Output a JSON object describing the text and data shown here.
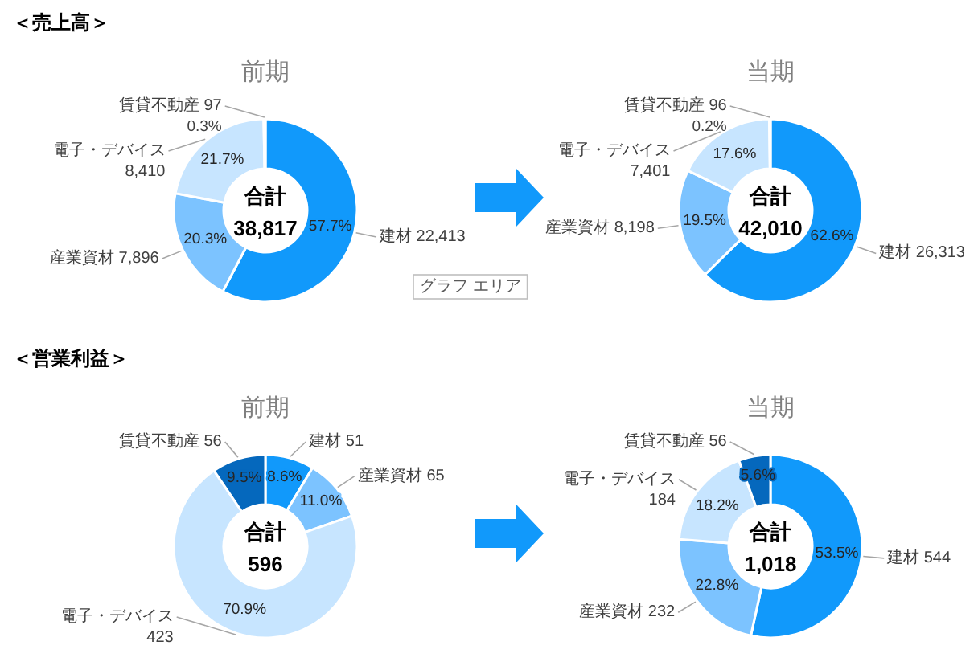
{
  "chart_data": [
    {
      "type": "donut",
      "title": "前期",
      "categories": [
        "建材 22,413",
        "産業資材 7,896",
        "電子・デバイス 8,410",
        "賃貸不動産 97"
      ],
      "values": [
        57.7,
        20.3,
        21.7,
        0.3
      ],
      "colors": [
        "#1199fb",
        "#7cc3ff",
        "#c7e5ff",
        "#0568bd"
      ],
      "value_labels": [
        "57.7%",
        "20.3%",
        "21.7%",
        "0.3%"
      ],
      "annotations": [
        "合計",
        "38,817",
        "＜売上高＞",
        "グラフ エリア"
      ]
    },
    {
      "type": "donut",
      "title": "当期",
      "categories": [
        "建材 26,313",
        "産業資材 8,198",
        "電子・デバイス 7,401",
        "賃貸不動産 96"
      ],
      "values": [
        62.6,
        19.5,
        17.6,
        0.2
      ],
      "colors": [
        "#1199fb",
        "#7cc3ff",
        "#c7e5ff",
        "#0568bd"
      ],
      "value_labels": [
        "62.6%",
        "19.5%",
        "17.6%",
        "0.2%"
      ],
      "annotations": [
        "合計",
        "42,010"
      ]
    },
    {
      "type": "donut",
      "title": "前期",
      "categories": [
        "建材 51",
        "産業資材 65",
        "電子・デバイス 423",
        "賃貸不動産 56"
      ],
      "values": [
        8.6,
        11.0,
        70.9,
        9.5
      ],
      "colors": [
        "#1199fb",
        "#7cc3ff",
        "#c7e5ff",
        "#0568bd"
      ],
      "value_labels": [
        "8.6%",
        "11.0%",
        "70.9%",
        "9.5%"
      ],
      "annotations": [
        "合計",
        "596",
        "＜営業利益＞"
      ]
    },
    {
      "type": "donut",
      "title": "当期",
      "categories": [
        "建材 544",
        "産業資材 232",
        "電子・デバイス 184",
        "賃貸不動産 56"
      ],
      "values": [
        53.5,
        22.8,
        18.2,
        5.6
      ],
      "colors": [
        "#1199fb",
        "#7cc3ff",
        "#c7e5ff",
        "#0568bd"
      ],
      "value_labels": [
        "53.5%",
        "22.8%",
        "18.2%",
        "5.6%"
      ],
      "annotations": [
        "合計",
        "1,018"
      ]
    }
  ]
}
